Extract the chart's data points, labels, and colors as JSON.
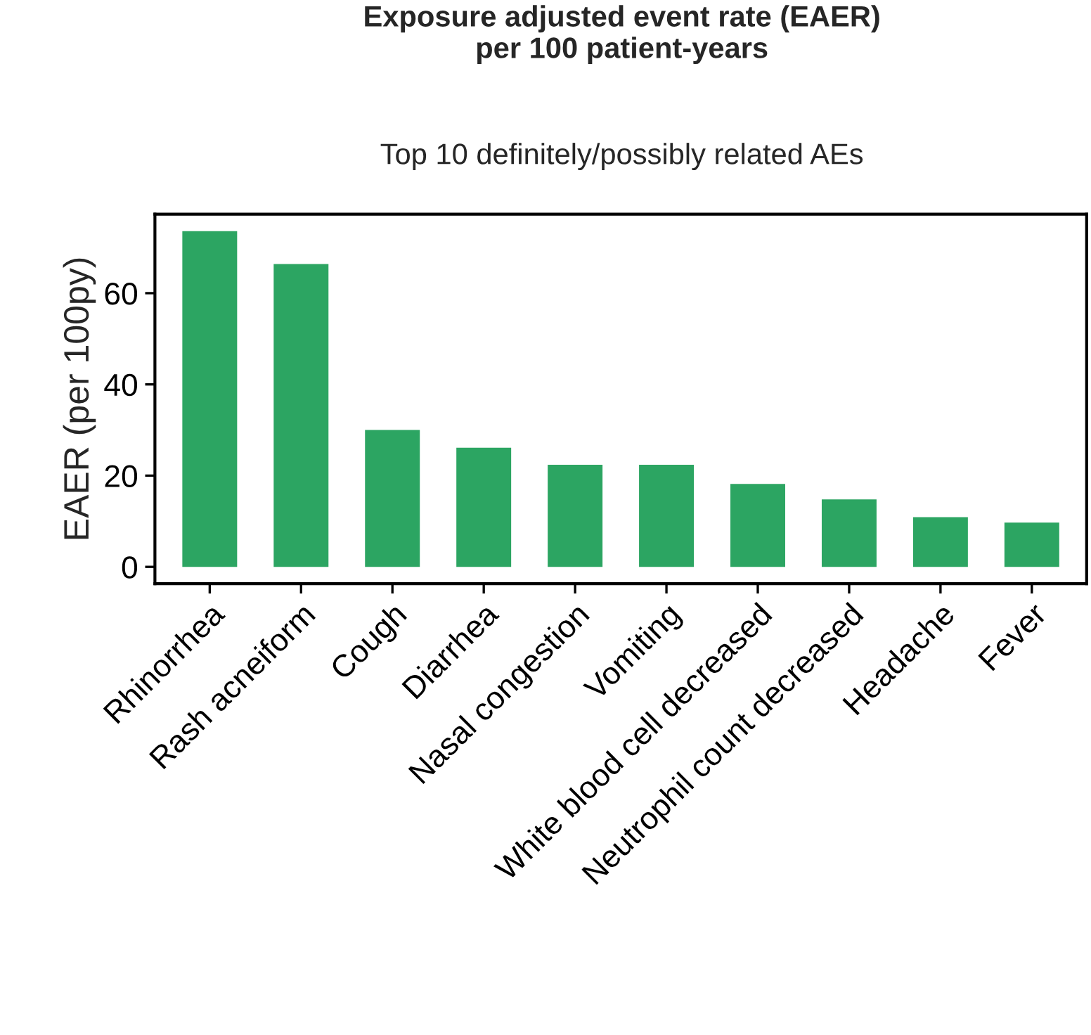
{
  "chart_data": {
    "type": "bar",
    "title": "Exposure adjusted event rate (EAER)\nper 100 patient-years",
    "subtitle": "Top 10 definitely/possibly related AEs",
    "ylabel": "EAER (per 100py)",
    "categories": [
      "Rhinorrhea",
      "Rash acneiform",
      "Cough",
      "Diarrhea",
      "Nasal congestion",
      "Vomiting",
      "White blood cell decreased",
      "Neutrophil count decreased",
      "Headache",
      "Fever"
    ],
    "values": [
      73.6,
      66.4,
      30.0,
      26.1,
      22.4,
      22.4,
      18.2,
      14.8,
      10.9,
      9.7
    ],
    "color": "#2ca562",
    "ylim": [
      -3.7,
      77.3
    ],
    "yticks": [
      0,
      20,
      40,
      60
    ],
    "grid": false
  }
}
